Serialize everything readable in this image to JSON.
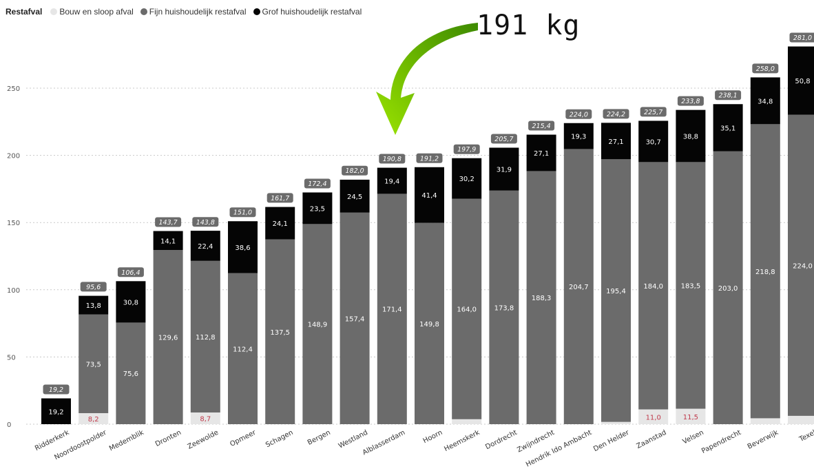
{
  "legend": {
    "title": "Restafval",
    "items": [
      {
        "label": "Bouw en sloop afval",
        "color": "#e6e6e6"
      },
      {
        "label": "Fijn huishoudelijk restafval",
        "color": "#6b6b6b"
      },
      {
        "label": "Grof huishoudelijk restafval",
        "color": "#050505"
      }
    ]
  },
  "annotation": {
    "text": "191 kg",
    "arrow_color": "#6fcf00"
  },
  "colors": {
    "bouw": "#e6e6e6",
    "fijn": "#6b6b6b",
    "grof": "#050505",
    "total_badge": "#6b6b6b",
    "small_label": "#c0394b",
    "label_on_dark": "#ffffff",
    "axis_text": "#555555",
    "grid": "#c8c8c8"
  },
  "chart_data": {
    "type": "bar",
    "stacked": true,
    "title": "",
    "xlabel": "",
    "ylabel": "",
    "ylim": [
      0,
      290
    ],
    "yticks": [
      0,
      50,
      100,
      150,
      200,
      250
    ],
    "grid": true,
    "categories": [
      "Ridderkerk",
      "Noordoostpolder",
      "Medemblik",
      "Dronten",
      "Zeewolde",
      "Opmeer",
      "Schagen",
      "Bergen",
      "Westland",
      "Alblasserdam",
      "Hoorn",
      "Heemskerk",
      "Dordrecht",
      "Zwijndrecht",
      "Hendrik Ido Ambacht",
      "Den Helder",
      "Zaanstad",
      "Velsen",
      "Papendrecht",
      "Beverwijk",
      "Texel"
    ],
    "series": [
      {
        "name": "Bouw en sloop afval",
        "values": [
          0,
          8.2,
          0,
          0,
          8.7,
          0,
          0,
          0,
          0,
          0,
          0,
          3.7,
          0,
          0,
          0,
          1.7,
          11.0,
          11.5,
          0,
          4.4,
          6.2
        ]
      },
      {
        "name": "Fijn huishoudelijk restafval",
        "values": [
          0,
          73.5,
          75.6,
          129.6,
          112.8,
          112.4,
          137.5,
          148.9,
          157.4,
          171.4,
          149.8,
          164.0,
          173.8,
          188.3,
          204.7,
          195.4,
          184.0,
          183.5,
          203.0,
          218.8,
          224.0
        ]
      },
      {
        "name": "Grof huishoudelijk restafval",
        "values": [
          19.2,
          13.8,
          30.8,
          14.1,
          22.4,
          38.6,
          24.1,
          23.5,
          24.5,
          19.4,
          41.4,
          30.2,
          31.9,
          27.1,
          19.3,
          27.1,
          30.7,
          38.8,
          35.1,
          34.8,
          50.8
        ]
      }
    ],
    "bouw_labels": [
      "",
      "8,2",
      "",
      "",
      "8,7",
      "",
      "",
      "",
      "",
      "",
      "",
      "",
      "",
      "",
      "",
      "",
      "11,0",
      "11,5",
      "",
      "",
      ""
    ],
    "fijn_labels": [
      "",
      "73,5",
      "75,6",
      "129,6",
      "112,8",
      "112,4",
      "137,5",
      "148,9",
      "157,4",
      "171,4",
      "149,8",
      "164,0",
      "173,8",
      "188,3",
      "204,7",
      "195,4",
      "184,0",
      "183,5",
      "203,0",
      "218,8",
      "224,0"
    ],
    "grof_labels": [
      "19,2",
      "13,8",
      "30,8",
      "14,1",
      "22,4",
      "38,6",
      "24,1",
      "23,5",
      "24,5",
      "19,4",
      "41,4",
      "30,2",
      "31,9",
      "27,1",
      "19,3",
      "27,1",
      "30,7",
      "38,8",
      "35,1",
      "34,8",
      "50,8"
    ],
    "totals": [
      19.2,
      95.6,
      106.4,
      143.7,
      143.8,
      151.0,
      161.7,
      172.4,
      182.0,
      190.8,
      191.2,
      197.9,
      205.7,
      215.4,
      224.0,
      224.2,
      225.7,
      233.8,
      238.1,
      258.0,
      281.0
    ],
    "total_labels": [
      "19,2",
      "95,6",
      "106,4",
      "143,7",
      "143,8",
      "151,0",
      "161,7",
      "172,4",
      "182,0",
      "190,8",
      "191,2",
      "197,9",
      "205,7",
      "215,4",
      "224,0",
      "224,2",
      "225,7",
      "233,8",
      "238,1",
      "258,0",
      "281,0"
    ]
  }
}
